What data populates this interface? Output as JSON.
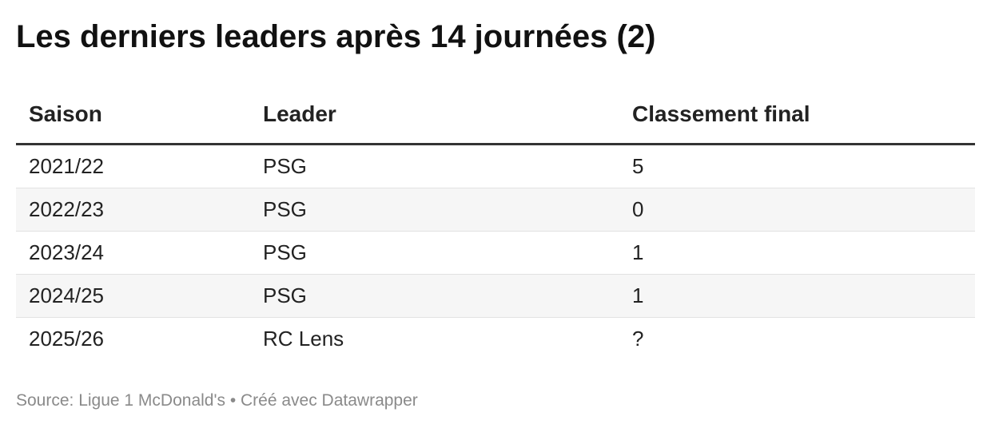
{
  "title": "Les derniers leaders après 14 journées (2)",
  "table": {
    "columns": [
      "Saison",
      "Leader",
      "Classement final"
    ],
    "rows": [
      {
        "saison": "2021/22",
        "leader": "PSG",
        "classement": "5"
      },
      {
        "saison": "2022/23",
        "leader": "PSG",
        "classement": "0"
      },
      {
        "saison": "2023/24",
        "leader": "PSG",
        "classement": "1"
      },
      {
        "saison": "2024/25",
        "leader": "PSG",
        "classement": "1"
      },
      {
        "saison": "2025/26",
        "leader": "RC Lens",
        "classement": "?"
      }
    ]
  },
  "footer": {
    "source": "Source: Ligue 1 McDonald's • Créé avec Datawrapper"
  },
  "chart_data": {
    "type": "table",
    "title": "Les derniers leaders après 14 journées (2)",
    "columns": [
      "Saison",
      "Leader",
      "Classement final"
    ],
    "rows": [
      [
        "2021/22",
        "PSG",
        "5"
      ],
      [
        "2022/23",
        "PSG",
        "0"
      ],
      [
        "2023/24",
        "PSG",
        "1"
      ],
      [
        "2024/25",
        "PSG",
        "1"
      ],
      [
        "2025/26",
        "RC Lens",
        "?"
      ]
    ]
  },
  "colors": {
    "text": "#222222",
    "header_rule": "#333333",
    "row_alt": "#f6f6f6",
    "row_divider": "#e2e2e2",
    "footer_text": "#8a8a8a"
  }
}
